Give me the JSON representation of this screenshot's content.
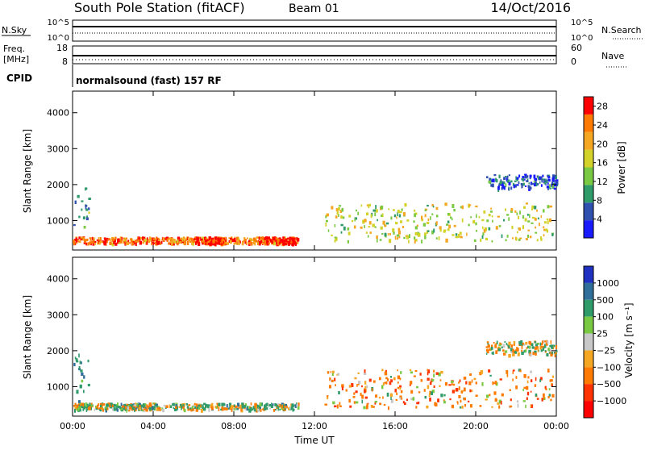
{
  "header": {
    "station": "South Pole Station (fitACF)",
    "beam": "Beam 01",
    "date": "14/Oct/2016"
  },
  "top_panels": {
    "sky_label": "N.Sky",
    "search_label": "N.Search",
    "sky_ticks": [
      "10^5",
      "10^0"
    ],
    "search_ticks": [
      "10^5",
      "10^0"
    ],
    "freq_label_1": "Freq.",
    "freq_label_2": "[MHz]",
    "freq_ticks": [
      "18",
      "8"
    ],
    "nave_label": "Nave",
    "nave_ticks": [
      "60",
      "0"
    ],
    "cpid_label": "CPID",
    "cpid_text": "normalsound (fast) 157 RF"
  },
  "colors": {
    "power_scale": [
      "#1a1aff",
      "#3050b0",
      "#2f9a6a",
      "#7ac943",
      "#d2d22a",
      "#f5a623",
      "#ff7a00",
      "#ff0000"
    ],
    "velocity_scale": [
      "#2030c0",
      "#2f6f9a",
      "#2f9a6a",
      "#7ac943",
      "#c8c8c8",
      "#f5a623",
      "#ff7a00",
      "#ff3300",
      "#ff0000"
    ],
    "ground_scatter": "#a0a0a0"
  },
  "chart_data": [
    {
      "type": "heatmap",
      "name": "power",
      "ylabel": "Slant Range [km]",
      "ylim": [
        180,
        4600
      ],
      "xlim_hours": [
        0,
        24
      ],
      "y_ticks": [
        "1000",
        "2000",
        "3000",
        "4000"
      ],
      "x_ticks": [
        "00:00",
        "04:00",
        "08:00",
        "12:00",
        "16:00",
        "20:00",
        "00:00"
      ],
      "colorbar": {
        "label": "Power [dB]",
        "ticks": [
          "4",
          "8",
          "12",
          "16",
          "20",
          "24",
          "28"
        ],
        "range": [
          0,
          30
        ]
      },
      "features": [
        {
          "label": "near-range band",
          "hours": [
            0.0,
            11.2
          ],
          "km": [
            380,
            560
          ],
          "level": 24
        },
        {
          "label": "strong patch",
          "hours": [
            6.0,
            7.5
          ],
          "km": [
            380,
            560
          ],
          "level": 29
        },
        {
          "label": "strong patch",
          "hours": [
            9.2,
            11.0
          ],
          "km": [
            380,
            560
          ],
          "level": 29
        },
        {
          "label": "early tail",
          "hours": [
            0.0,
            0.8
          ],
          "km": [
            600,
            2000
          ],
          "level": 10
        },
        {
          "label": "afternoon echoes",
          "hours": [
            12.5,
            23.8
          ],
          "km": [
            450,
            1500
          ],
          "level": 16
        },
        {
          "label": "late high-range",
          "hours": [
            20.5,
            24.0
          ],
          "km": [
            1900,
            2300
          ],
          "level": 6
        }
      ]
    },
    {
      "type": "heatmap",
      "name": "velocity",
      "ylabel": "Slant Range [km]",
      "ylim": [
        180,
        4600
      ],
      "xlim_hours": [
        0,
        24
      ],
      "y_ticks": [
        "1000",
        "2000",
        "3000",
        "4000"
      ],
      "x_ticks": [
        "00:00",
        "04:00",
        "08:00",
        "12:00",
        "16:00",
        "20:00",
        "00:00"
      ],
      "xlabel": "Time UT",
      "colorbar": {
        "label": "Velocity [m s⁻¹]",
        "ticks": [
          "1000",
          "500",
          "100",
          "25",
          "−25",
          "−100",
          "−500",
          "−1000"
        ]
      },
      "features": [
        {
          "label": "near-range band",
          "hours": [
            0.0,
            11.2
          ],
          "km": [
            380,
            560
          ],
          "level": 100
        },
        {
          "label": "early tail",
          "hours": [
            0.0,
            0.8
          ],
          "km": [
            600,
            2000
          ],
          "level": 500
        },
        {
          "label": "afternoon echoes",
          "hours": [
            12.5,
            23.8
          ],
          "km": [
            450,
            1500
          ],
          "level": -300
        },
        {
          "label": "late high-range",
          "hours": [
            20.5,
            24.0
          ],
          "km": [
            1900,
            2300
          ],
          "level": 0
        }
      ]
    }
  ]
}
